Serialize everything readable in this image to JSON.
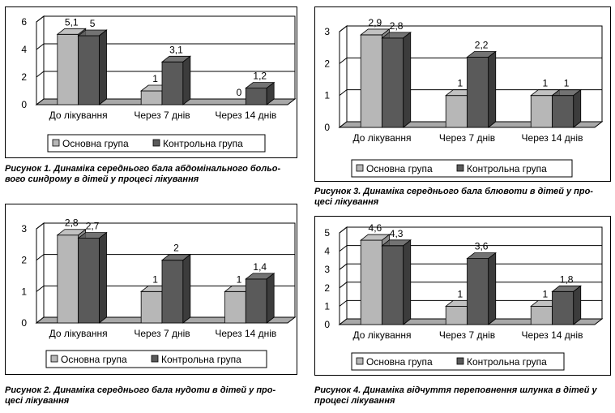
{
  "colors": {
    "main_group": "#b7b7b7",
    "control_group": "#5a5a5a",
    "plot_wall": "#ffffff"
  },
  "chart_data": [
    {
      "type": "bar",
      "categories": [
        "До лікування",
        "Через 7 днів",
        "Через 14 днів"
      ],
      "series": [
        {
          "name": "Основна група",
          "values": [
            5.1,
            1,
            0
          ],
          "labels": [
            "5,1",
            "1",
            "0"
          ]
        },
        {
          "name": "Контрольна група",
          "values": [
            5,
            3.1,
            1.2
          ],
          "labels": [
            "5",
            "3,1",
            "1,2"
          ]
        }
      ],
      "yticks": [
        "0",
        "2",
        "4",
        "6"
      ],
      "ylim": [
        0,
        6
      ],
      "grid": true,
      "legend_position": "bottom",
      "title": "",
      "caption": [
        "Рисунок 1. Динаміка середнього бала абдомінального больо-",
        "вого синдрому в дітей у процесі лікування"
      ]
    },
    {
      "type": "bar",
      "categories": [
        "До лікування",
        "Через 7 днів",
        "Через 14 днів"
      ],
      "series": [
        {
          "name": "Основна група",
          "values": [
            2.8,
            1,
            1
          ],
          "labels": [
            "2,8",
            "1",
            "1"
          ]
        },
        {
          "name": "Контрольна група",
          "values": [
            2.7,
            2,
            1.4
          ],
          "labels": [
            "2,7",
            "2",
            "1,4"
          ]
        }
      ],
      "yticks": [
        "0",
        "1",
        "2",
        "3"
      ],
      "ylim": [
        0,
        3
      ],
      "grid": true,
      "legend_position": "bottom",
      "title": "",
      "caption": [
        "Рисунок 2. Динаміка середнього бала нудоти в дітей у про-",
        "цесі лікування"
      ]
    },
    {
      "type": "bar",
      "categories": [
        "До лікування",
        "Через 7 днів",
        "Через 14 днів"
      ],
      "series": [
        {
          "name": "Основна група",
          "values": [
            2.9,
            1,
            1
          ],
          "labels": [
            "2,9",
            "1",
            "1"
          ]
        },
        {
          "name": "Контрольна група",
          "values": [
            2.8,
            2.2,
            1
          ],
          "labels": [
            "2,8",
            "2,2",
            "1"
          ]
        }
      ],
      "yticks": [
        "0",
        "1",
        "2",
        "3"
      ],
      "ylim": [
        0,
        3
      ],
      "grid": true,
      "legend_position": "bottom",
      "title": "",
      "caption": [
        "Рисунок 3. Динаміка середнього бала блювоти в дітей у про-",
        "цесі лікування"
      ]
    },
    {
      "type": "bar",
      "categories": [
        "До лікування",
        "Через 7 днів",
        "Через 14 днів"
      ],
      "series": [
        {
          "name": "Основна група",
          "values": [
            4.6,
            1,
            1
          ],
          "labels": [
            "4,6",
            "1",
            "1"
          ]
        },
        {
          "name": "Контрольна група",
          "values": [
            4.3,
            3.6,
            1.8
          ],
          "labels": [
            "4,3",
            "3,6",
            "1,8"
          ]
        }
      ],
      "yticks": [
        "0",
        "1",
        "2",
        "3",
        "4",
        "5"
      ],
      "ylim": [
        0,
        5
      ],
      "grid": true,
      "legend_position": "bottom",
      "title": "",
      "caption": [
        "Рисунок 4. Динаміка відчуття переповнення шлунка в дітей у",
        "процесі лікування"
      ]
    }
  ]
}
